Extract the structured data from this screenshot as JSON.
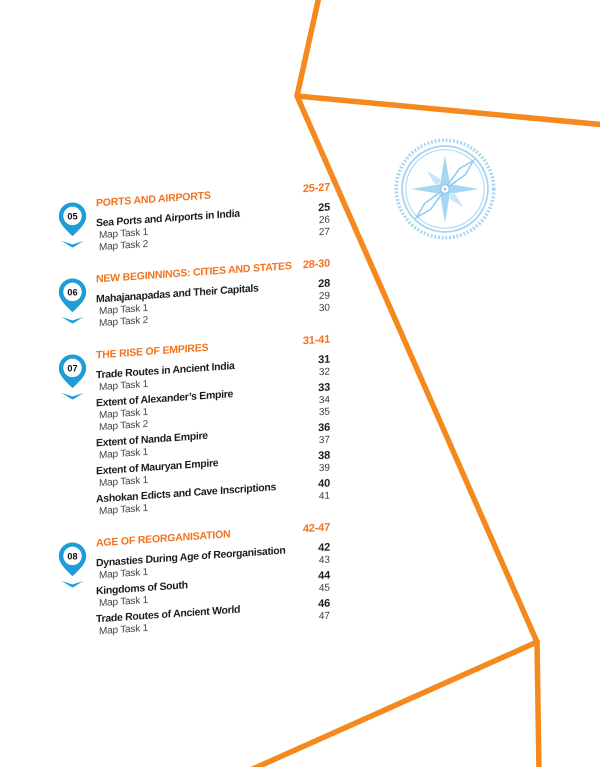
{
  "colors": {
    "accent_orange": "#f3721f",
    "map_line_orange": "#f6891e",
    "pin_blue": "#1c9cd8",
    "item_text": "#1d1d1f",
    "task_text": "#454547",
    "compass_blue": "#a6d7f2"
  },
  "decor": {
    "watermark": "compass-rose",
    "border_art": "orange-map-outline"
  },
  "toc": {
    "sections": [
      {
        "number": "05",
        "title": "PORTS AND AIRPORTS",
        "page_range": "25-27",
        "entries": [
          {
            "label": "Sea Ports and Airports in India",
            "page": "25",
            "tasks": [
              {
                "label": "Map Task 1",
                "page": "26"
              },
              {
                "label": "Map Task 2",
                "page": "27"
              }
            ]
          }
        ]
      },
      {
        "number": "06",
        "title": "NEW BEGINNINGS: CITIES AND STATES",
        "page_range": "28-30",
        "entries": [
          {
            "label": "Mahajanapadas and Their Capitals",
            "page": "28",
            "tasks": [
              {
                "label": "Map Task 1",
                "page": "29"
              },
              {
                "label": "Map Task 2",
                "page": "30"
              }
            ]
          }
        ]
      },
      {
        "number": "07",
        "title": "THE RISE OF EMPIRES",
        "page_range": "31-41",
        "entries": [
          {
            "label": "Trade Routes in Ancient India",
            "page": "31",
            "tasks": [
              {
                "label": "Map Task 1",
                "page": "32"
              }
            ]
          },
          {
            "label": "Extent of Alexander’s Empire",
            "page": "33",
            "tasks": [
              {
                "label": "Map Task 1",
                "page": "34"
              },
              {
                "label": "Map Task 2",
                "page": "35"
              }
            ]
          },
          {
            "label": "Extent of Nanda Empire",
            "page": "36",
            "tasks": [
              {
                "label": "Map Task 1",
                "page": "37"
              }
            ]
          },
          {
            "label": "Extent of Mauryan Empire",
            "page": "38",
            "tasks": [
              {
                "label": "Map Task 1",
                "page": "39"
              }
            ]
          },
          {
            "label": "Ashokan Edicts and Cave Inscriptions",
            "page": "40",
            "tasks": [
              {
                "label": "Map Task 1",
                "page": "41"
              }
            ]
          }
        ]
      },
      {
        "number": "08",
        "title": "AGE OF REORGANISATION",
        "page_range": "42-47",
        "entries": [
          {
            "label": "Dynasties During Age of Reorganisation",
            "page": "42",
            "tasks": [
              {
                "label": "Map Task 1",
                "page": "43"
              }
            ]
          },
          {
            "label": "Kingdoms of South",
            "page": "44",
            "tasks": [
              {
                "label": "Map Task 1",
                "page": "45"
              }
            ]
          },
          {
            "label": "Trade Routes of Ancient World",
            "page": "46",
            "tasks": [
              {
                "label": "Map Task 1",
                "page": "47"
              }
            ]
          }
        ]
      }
    ]
  }
}
